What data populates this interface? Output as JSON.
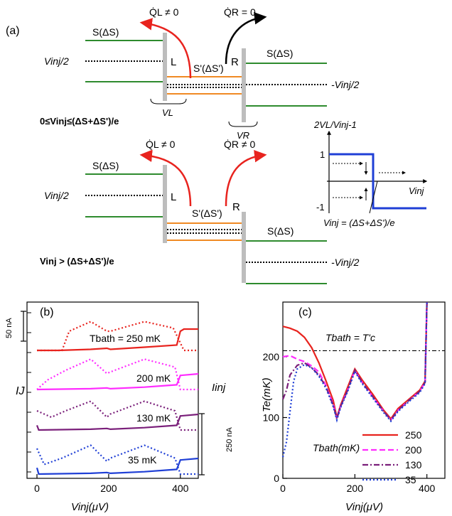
{
  "colors": {
    "green": "#2e8b2e",
    "orange": "#f08a24",
    "gray": "#bdbdbd",
    "red_arrow": "#e8231e",
    "blue_step": "#1f3fd6",
    "c250": "#e8231e",
    "c200": "#ff2bff",
    "c130": "#7a1f7a",
    "c35": "#1f3fd6"
  },
  "panel_a": {
    "label": "(a)",
    "top": {
      "ql_label": "Q̇L ≠ 0",
      "qr_label": "Q̇R = 0",
      "s_left": "S(ΔS)",
      "s_right": "S(ΔS)",
      "s_mid": "S'(ΔS')",
      "L": "L",
      "R": "R",
      "vinj_left": "Vinj/2",
      "vinj_right": "-Vinj/2",
      "vl": "VL",
      "vr": "VR",
      "condition": "0≤Vinj≤(ΔS+ΔS')/e"
    },
    "bottom": {
      "ql_label": "Q̇L ≠ 0",
      "qr_label": "Q̇R ≠ 0",
      "s_left": "S(ΔS)",
      "s_right": "S(ΔS)",
      "s_mid": "S'(ΔS')",
      "L": "L",
      "R": "R",
      "vinj_left": "Vinj/2",
      "vinj_right": "-Vinj/2",
      "condition": "Vinj > (ΔS+ΔS')/e"
    },
    "inset": {
      "ylabel": "2VL/Vinj-1",
      "y_top": "1",
      "y_bottom": "-1",
      "xlabel": "Vinj",
      "threshold": "Vinj = (ΔS+ΔS')/e"
    }
  },
  "panel_b": {
    "label": "(b)",
    "ylabel": "IJ",
    "ylabel_right": "Iinj",
    "xlabel": "Vinj(μV)",
    "scale_left": "50 nA",
    "scale_right": "250 nA",
    "temps": [
      "Tbath = 250 mK",
      "200 mK",
      "130 mK",
      "35 mK"
    ]
  },
  "chart_data": [
    {
      "type": "line",
      "title": "",
      "xlabel": "Vinj(μV)",
      "ylabel": "IJ",
      "xlim": [
        0,
        450
      ],
      "xticks": [
        0,
        200,
        400
      ],
      "series": [
        {
          "name": "250 mK",
          "style": "dotted",
          "x": [
            0,
            70,
            90,
            150,
            195,
            205,
            300,
            380,
            410,
            450
          ],
          "values": [
            0.0,
            0.0,
            0.6,
            0.9,
            0.6,
            0.6,
            0.9,
            0.7,
            0.0,
            0.0
          ]
        },
        {
          "name": "250 mK",
          "style": "solid",
          "x": [
            0,
            60,
            150,
            195,
            205,
            300,
            390,
            400,
            410,
            450
          ],
          "values": [
            0.0,
            0.0,
            0.05,
            0.1,
            0.05,
            0.15,
            0.25,
            0.9,
            1.0,
            1.0
          ]
        },
        {
          "name": "200 mK",
          "style": "dotted",
          "x": [
            0,
            30,
            80,
            150,
            195,
            205,
            300,
            385,
            400,
            450
          ],
          "values": [
            0.0,
            0.3,
            0.6,
            0.95,
            0.5,
            0.55,
            0.95,
            0.7,
            0.0,
            0.0
          ]
        },
        {
          "name": "200 mK",
          "style": "solid",
          "x": [
            0,
            150,
            195,
            205,
            300,
            390,
            400,
            450
          ],
          "values": [
            0.0,
            0.05,
            0.1,
            0.05,
            0.15,
            0.3,
            0.9,
            1.0
          ]
        },
        {
          "name": "130 mK",
          "style": "dotted",
          "x": [
            0,
            40,
            80,
            150,
            195,
            205,
            300,
            385,
            400,
            450
          ],
          "values": [
            0.6,
            0.4,
            0.6,
            0.9,
            0.4,
            0.5,
            0.9,
            0.6,
            0.0,
            0.0
          ]
        },
        {
          "name": "130 mK",
          "style": "solid",
          "x": [
            0,
            5,
            150,
            195,
            205,
            300,
            390,
            400,
            450
          ],
          "values": [
            0.3,
            0.0,
            0.05,
            0.1,
            0.05,
            0.15,
            0.3,
            0.9,
            1.0
          ]
        },
        {
          "name": "35 mK",
          "style": "dotted",
          "x": [
            0,
            20,
            70,
            150,
            195,
            205,
            300,
            385,
            400,
            450
          ],
          "values": [
            0.8,
            0.3,
            0.5,
            0.9,
            0.4,
            0.5,
            0.9,
            0.5,
            0.0,
            0.0
          ]
        },
        {
          "name": "35 mK",
          "style": "solid",
          "x": [
            0,
            5,
            150,
            195,
            205,
            300,
            390,
            400,
            450
          ],
          "values": [
            0.4,
            0.0,
            0.05,
            0.1,
            0.05,
            0.15,
            0.3,
            0.9,
            1.0
          ]
        }
      ]
    },
    {
      "type": "line",
      "title": "",
      "xlabel": "Vinj(μV)",
      "ylabel": "Te(mK)",
      "xlim": [
        0,
        450
      ],
      "ylim": [
        0,
        290
      ],
      "xticks": [
        0,
        200,
        400
      ],
      "yticks": [
        0,
        100,
        200
      ],
      "annotation": "Tbath = T'c",
      "hline": 210,
      "legend_title": "Tbath(mK)",
      "series": [
        {
          "name": "250",
          "style": "solid",
          "x": [
            0,
            20,
            40,
            60,
            80,
            100,
            120,
            140,
            150,
            160,
            180,
            200,
            220,
            250,
            280,
            300,
            320,
            350,
            380,
            395,
            400
          ],
          "values": [
            250,
            247,
            242,
            232,
            215,
            190,
            160,
            128,
            100,
            120,
            150,
            180,
            162,
            138,
            112,
            98,
            115,
            130,
            145,
            160,
            290
          ]
        },
        {
          "name": "200",
          "style": "dashed",
          "x": [
            0,
            20,
            40,
            60,
            80,
            100,
            120,
            140,
            150,
            160,
            180,
            200,
            220,
            250,
            280,
            300,
            320,
            350,
            380,
            395,
            400
          ],
          "values": [
            200,
            202,
            196,
            192,
            185,
            175,
            152,
            122,
            98,
            118,
            145,
            178,
            158,
            134,
            110,
            96,
            112,
            128,
            143,
            158,
            290
          ]
        },
        {
          "name": "130",
          "style": "dashdot",
          "x": [
            0,
            10,
            20,
            40,
            60,
            80,
            100,
            120,
            140,
            150,
            160,
            180,
            200,
            220,
            250,
            280,
            300,
            320,
            350,
            380,
            395,
            400
          ],
          "values": [
            130,
            145,
            170,
            186,
            190,
            182,
            170,
            150,
            120,
            98,
            118,
            145,
            178,
            158,
            134,
            110,
            96,
            112,
            128,
            143,
            158,
            290
          ]
        },
        {
          "name": "35",
          "style": "dotted",
          "x": [
            0,
            10,
            20,
            30,
            40,
            60,
            80,
            100,
            120,
            140,
            150,
            160,
            180,
            200,
            220,
            250,
            280,
            300,
            320,
            350,
            380,
            395,
            400
          ],
          "values": [
            35,
            60,
            110,
            160,
            180,
            187,
            182,
            168,
            148,
            118,
            96,
            116,
            143,
            176,
            156,
            132,
            108,
            94,
            110,
            126,
            141,
            156,
            290
          ]
        }
      ]
    }
  ]
}
